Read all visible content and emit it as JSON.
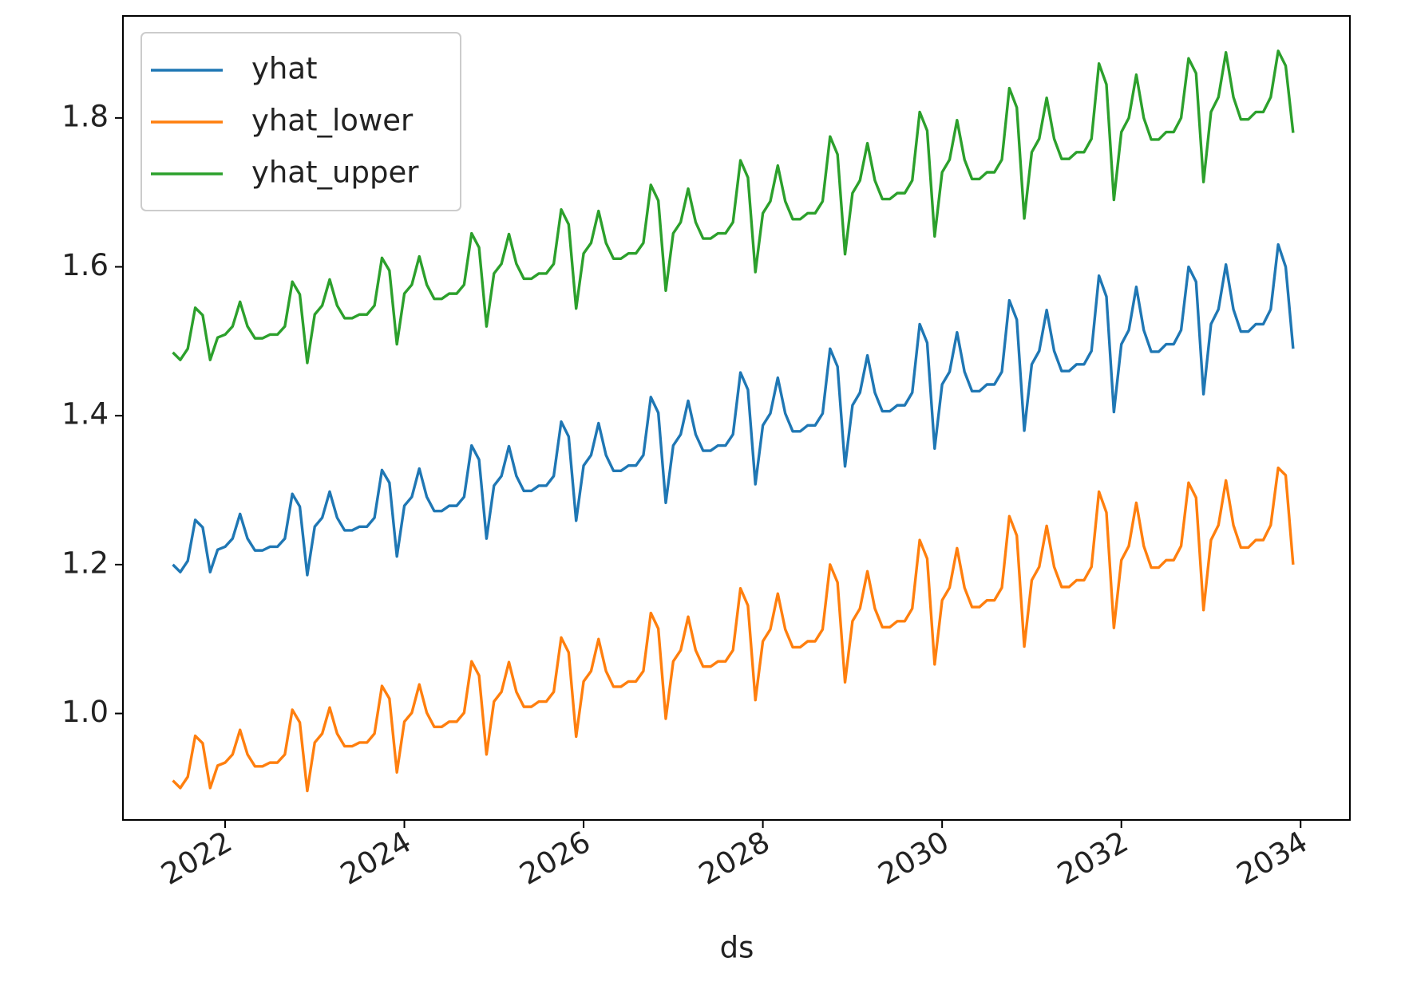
{
  "chart_data": {
    "type": "line",
    "x_label": "ds",
    "x": [
      "2021-06",
      "2021-07",
      "2021-08",
      "2021-09",
      "2021-10",
      "2021-11",
      "2021-12",
      "2022-01",
      "2022-02",
      "2022-03",
      "2022-04",
      "2022-05",
      "2022-06",
      "2022-07",
      "2022-08",
      "2022-09",
      "2022-10",
      "2022-11",
      "2022-12",
      "2023-01",
      "2023-02",
      "2023-03",
      "2023-04",
      "2023-05",
      "2023-06",
      "2023-07",
      "2023-08",
      "2023-09",
      "2023-10",
      "2023-11",
      "2023-12",
      "2024-01",
      "2024-02",
      "2024-03",
      "2024-04",
      "2024-05",
      "2024-06",
      "2024-07",
      "2024-08",
      "2024-09",
      "2024-10",
      "2024-11",
      "2024-12",
      "2025-01",
      "2025-02",
      "2025-03",
      "2025-04",
      "2025-05",
      "2025-06",
      "2025-07",
      "2025-08",
      "2025-09",
      "2025-10",
      "2025-11",
      "2025-12",
      "2026-01",
      "2026-02",
      "2026-03",
      "2026-04",
      "2026-05",
      "2026-06",
      "2026-07",
      "2026-08",
      "2026-09",
      "2026-10",
      "2026-11",
      "2026-12",
      "2027-01",
      "2027-02",
      "2027-03",
      "2027-04",
      "2027-05",
      "2027-06",
      "2027-07",
      "2027-08",
      "2027-09",
      "2027-10",
      "2027-11",
      "2027-12",
      "2028-01",
      "2028-02",
      "2028-03",
      "2028-04",
      "2028-05",
      "2028-06",
      "2028-07",
      "2028-08",
      "2028-09",
      "2028-10",
      "2028-11",
      "2028-12",
      "2029-01",
      "2029-02",
      "2029-03",
      "2029-04",
      "2029-05",
      "2029-06",
      "2029-07",
      "2029-08",
      "2029-09",
      "2029-10",
      "2029-11",
      "2029-12",
      "2030-01",
      "2030-02",
      "2030-03",
      "2030-04",
      "2030-05",
      "2030-06",
      "2030-07",
      "2030-08",
      "2030-09",
      "2030-10",
      "2030-11",
      "2030-12",
      "2031-01",
      "2031-02",
      "2031-03",
      "2031-04",
      "2031-05",
      "2031-06",
      "2031-07",
      "2031-08",
      "2031-09",
      "2031-10",
      "2031-11",
      "2031-12",
      "2032-01",
      "2032-02",
      "2032-03",
      "2032-04",
      "2032-05",
      "2032-06",
      "2032-07",
      "2032-08",
      "2032-09",
      "2032-10",
      "2032-11",
      "2032-12",
      "2033-01",
      "2033-02",
      "2033-03",
      "2033-04",
      "2033-05",
      "2033-06",
      "2033-07",
      "2033-08",
      "2033-09",
      "2033-10",
      "2033-11",
      "2033-12"
    ],
    "series": [
      {
        "name": "yhat",
        "color": "#1f77b4",
        "values": [
          1.2,
          1.19,
          1.205,
          1.26,
          1.25,
          1.19,
          1.22,
          1.224,
          1.235,
          1.268,
          1.235,
          1.219,
          1.219,
          1.224,
          1.224,
          1.235,
          1.295,
          1.278,
          1.186,
          1.251,
          1.263,
          1.298,
          1.263,
          1.246,
          1.246,
          1.251,
          1.251,
          1.263,
          1.327,
          1.31,
          1.211,
          1.279,
          1.291,
          1.329,
          1.291,
          1.272,
          1.272,
          1.279,
          1.279,
          1.291,
          1.36,
          1.341,
          1.235,
          1.306,
          1.319,
          1.359,
          1.319,
          1.299,
          1.299,
          1.306,
          1.306,
          1.319,
          1.392,
          1.372,
          1.259,
          1.333,
          1.347,
          1.39,
          1.347,
          1.326,
          1.326,
          1.333,
          1.333,
          1.347,
          1.425,
          1.404,
          1.283,
          1.36,
          1.375,
          1.42,
          1.375,
          1.353,
          1.353,
          1.36,
          1.36,
          1.375,
          1.458,
          1.435,
          1.308,
          1.387,
          1.403,
          1.451,
          1.403,
          1.379,
          1.379,
          1.387,
          1.387,
          1.403,
          1.49,
          1.466,
          1.332,
          1.414,
          1.431,
          1.481,
          1.431,
          1.406,
          1.406,
          1.414,
          1.414,
          1.431,
          1.523,
          1.498,
          1.356,
          1.442,
          1.459,
          1.512,
          1.459,
          1.433,
          1.433,
          1.442,
          1.442,
          1.459,
          1.555,
          1.529,
          1.38,
          1.469,
          1.487,
          1.542,
          1.487,
          1.46,
          1.46,
          1.469,
          1.469,
          1.487,
          1.588,
          1.56,
          1.405,
          1.496,
          1.515,
          1.573,
          1.515,
          1.486,
          1.486,
          1.496,
          1.496,
          1.515,
          1.6,
          1.58,
          1.429,
          1.523,
          1.543,
          1.603,
          1.543,
          1.513,
          1.513,
          1.523,
          1.523,
          1.543,
          1.63,
          1.6,
          1.49
        ]
      },
      {
        "name": "yhat_lower",
        "color": "#ff7f0e",
        "values": [
          0.91,
          0.9,
          0.915,
          0.97,
          0.96,
          0.9,
          0.93,
          0.934,
          0.945,
          0.978,
          0.945,
          0.929,
          0.929,
          0.934,
          0.934,
          0.945,
          1.005,
          0.988,
          0.896,
          0.961,
          0.973,
          1.008,
          0.973,
          0.956,
          0.956,
          0.961,
          0.961,
          0.973,
          1.037,
          1.02,
          0.921,
          0.989,
          1.001,
          1.039,
          1.001,
          0.982,
          0.982,
          0.989,
          0.989,
          1.001,
          1.07,
          1.051,
          0.945,
          1.016,
          1.029,
          1.069,
          1.029,
          1.009,
          1.009,
          1.016,
          1.016,
          1.029,
          1.102,
          1.082,
          0.969,
          1.043,
          1.057,
          1.1,
          1.057,
          1.036,
          1.036,
          1.043,
          1.043,
          1.057,
          1.135,
          1.114,
          0.993,
          1.07,
          1.085,
          1.13,
          1.085,
          1.063,
          1.063,
          1.07,
          1.07,
          1.085,
          1.168,
          1.145,
          1.018,
          1.097,
          1.113,
          1.161,
          1.113,
          1.089,
          1.089,
          1.097,
          1.097,
          1.113,
          1.2,
          1.176,
          1.042,
          1.124,
          1.141,
          1.191,
          1.141,
          1.116,
          1.116,
          1.124,
          1.124,
          1.141,
          1.233,
          1.208,
          1.066,
          1.152,
          1.169,
          1.222,
          1.169,
          1.143,
          1.143,
          1.152,
          1.152,
          1.169,
          1.265,
          1.239,
          1.09,
          1.179,
          1.197,
          1.252,
          1.197,
          1.17,
          1.17,
          1.179,
          1.179,
          1.197,
          1.298,
          1.27,
          1.115,
          1.206,
          1.225,
          1.283,
          1.225,
          1.196,
          1.196,
          1.206,
          1.206,
          1.225,
          1.31,
          1.29,
          1.139,
          1.233,
          1.253,
          1.313,
          1.253,
          1.223,
          1.223,
          1.233,
          1.233,
          1.253,
          1.33,
          1.32,
          1.2
        ]
      },
      {
        "name": "yhat_upper",
        "color": "#2ca02c",
        "values": [
          1.485,
          1.475,
          1.49,
          1.545,
          1.535,
          1.475,
          1.505,
          1.509,
          1.52,
          1.553,
          1.52,
          1.504,
          1.504,
          1.509,
          1.509,
          1.52,
          1.58,
          1.563,
          1.471,
          1.536,
          1.548,
          1.583,
          1.548,
          1.531,
          1.531,
          1.536,
          1.536,
          1.548,
          1.612,
          1.595,
          1.496,
          1.564,
          1.576,
          1.614,
          1.576,
          1.557,
          1.557,
          1.564,
          1.564,
          1.576,
          1.645,
          1.626,
          1.52,
          1.591,
          1.604,
          1.644,
          1.604,
          1.584,
          1.584,
          1.591,
          1.591,
          1.604,
          1.677,
          1.657,
          1.544,
          1.618,
          1.632,
          1.675,
          1.632,
          1.611,
          1.611,
          1.618,
          1.618,
          1.632,
          1.71,
          1.689,
          1.568,
          1.645,
          1.66,
          1.705,
          1.66,
          1.638,
          1.638,
          1.645,
          1.645,
          1.66,
          1.743,
          1.72,
          1.593,
          1.672,
          1.688,
          1.736,
          1.688,
          1.664,
          1.664,
          1.672,
          1.672,
          1.688,
          1.775,
          1.751,
          1.617,
          1.699,
          1.716,
          1.766,
          1.716,
          1.691,
          1.691,
          1.699,
          1.699,
          1.716,
          1.808,
          1.783,
          1.641,
          1.727,
          1.744,
          1.797,
          1.744,
          1.718,
          1.718,
          1.727,
          1.727,
          1.744,
          1.84,
          1.814,
          1.665,
          1.754,
          1.772,
          1.827,
          1.772,
          1.745,
          1.745,
          1.754,
          1.754,
          1.772,
          1.873,
          1.845,
          1.69,
          1.781,
          1.8,
          1.858,
          1.8,
          1.771,
          1.771,
          1.781,
          1.781,
          1.8,
          1.88,
          1.86,
          1.714,
          1.808,
          1.828,
          1.888,
          1.828,
          1.798,
          1.798,
          1.808,
          1.808,
          1.828,
          1.89,
          1.87,
          1.78
        ]
      }
    ],
    "xlim": [
      2020.86,
      2034.55
    ],
    "xticks": [
      2022,
      2024,
      2026,
      2028,
      2030,
      2032,
      2034
    ],
    "ylim": [
      0.857,
      1.937
    ],
    "yticks": [
      {
        "value": 1.0,
        "label": "1.0"
      },
      1.2,
      1.4,
      1.6,
      1.8
    ],
    "grid": false,
    "legend": "upper left"
  }
}
